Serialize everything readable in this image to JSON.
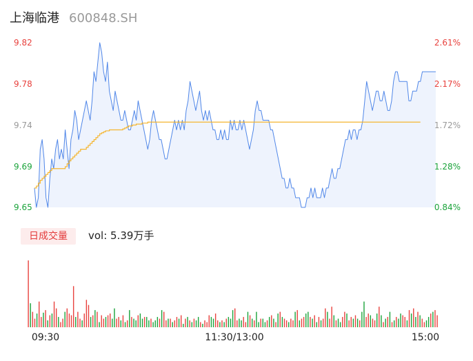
{
  "header": {
    "name": "上海临港",
    "code": "600848.SH"
  },
  "volume": {
    "badge": "日成交量",
    "label": "vol: 5.39万手"
  },
  "colors": {
    "up": "#e8413d",
    "down": "#1aa33a",
    "neutral": "#999999",
    "price_line": "#4f86e8",
    "avg_line": "#f5b52e"
  },
  "chart_data": [
    {
      "type": "line",
      "title": "",
      "price_ticks": [
        "9.82",
        "9.78",
        "9.74",
        "9.69",
        "9.65"
      ],
      "pct_ticks": [
        "2.61%",
        "2.17%",
        "1.72%",
        "1.28%",
        "0.84%"
      ],
      "y_range": [
        9.65,
        9.82
      ],
      "x_ticks": [
        "09:30",
        "11:30/13:00",
        "15:00"
      ],
      "series": [
        {
          "role": "price",
          "values": [
            9.67,
            9.65,
            9.66,
            9.71,
            9.72,
            9.7,
            9.66,
            9.65,
            9.68,
            9.7,
            9.69,
            9.71,
            9.72,
            9.7,
            9.71,
            9.7,
            9.73,
            9.71,
            9.69,
            9.72,
            9.73,
            9.75,
            9.74,
            9.72,
            9.73,
            9.74,
            9.75,
            9.76,
            9.75,
            9.74,
            9.76,
            9.79,
            9.78,
            9.8,
            9.82,
            9.81,
            9.79,
            9.78,
            9.8,
            9.77,
            9.76,
            9.75,
            9.77,
            9.76,
            9.75,
            9.74,
            9.74,
            9.75,
            9.74,
            9.73,
            9.73,
            9.74,
            9.75,
            9.74,
            9.76,
            9.75,
            9.74,
            9.73,
            9.72,
            9.71,
            9.72,
            9.74,
            9.75,
            9.74,
            9.73,
            9.72,
            9.72,
            9.71,
            9.7,
            9.7,
            9.71,
            9.72,
            9.73,
            9.74,
            9.73,
            9.74,
            9.73,
            9.74,
            9.73,
            9.75,
            9.76,
            9.78,
            9.77,
            9.76,
            9.75,
            9.76,
            9.77,
            9.75,
            9.74,
            9.75,
            9.74,
            9.75,
            9.74,
            9.73,
            9.73,
            9.72,
            9.72,
            9.73,
            9.72,
            9.73,
            9.72,
            9.72,
            9.74,
            9.73,
            9.74,
            9.73,
            9.73,
            9.74,
            9.73,
            9.74,
            9.73,
            9.72,
            9.71,
            9.72,
            9.73,
            9.75,
            9.76,
            9.75,
            9.75,
            9.74,
            9.74,
            9.74,
            9.74,
            9.73,
            9.73,
            9.72,
            9.71,
            9.7,
            9.69,
            9.68,
            9.68,
            9.67,
            9.67,
            9.68,
            9.67,
            9.67,
            9.66,
            9.66,
            9.66,
            9.65,
            9.65,
            9.65,
            9.66,
            9.66,
            9.67,
            9.66,
            9.67,
            9.66,
            9.66,
            9.66,
            9.67,
            9.66,
            9.67,
            9.67,
            9.68,
            9.69,
            9.68,
            9.68,
            9.69,
            9.69,
            9.7,
            9.71,
            9.72,
            9.72,
            9.73,
            9.72,
            9.73,
            9.73,
            9.72,
            9.73,
            9.73,
            9.74,
            9.76,
            9.78,
            9.77,
            9.76,
            9.75,
            9.76,
            9.77,
            9.77,
            9.76,
            9.76,
            9.77,
            9.76,
            9.75,
            9.75,
            9.76,
            9.78,
            9.79,
            9.79,
            9.78,
            9.78,
            9.78,
            9.78,
            9.78,
            9.76,
            9.76,
            9.77,
            9.77,
            9.77,
            9.78,
            9.78,
            9.79,
            9.79,
            9.79,
            9.79,
            9.79,
            9.79,
            9.79,
            9.79
          ]
        },
        {
          "role": "average",
          "values": [
            9.67,
            9.672,
            9.675,
            9.678,
            9.68,
            9.682,
            9.684,
            9.686,
            9.688,
            9.69,
            9.69,
            9.69,
            9.69,
            9.69,
            9.69,
            9.69,
            9.692,
            9.695,
            9.698,
            9.7,
            9.702,
            9.704,
            9.706,
            9.708,
            9.71,
            9.71,
            9.71,
            9.712,
            9.714,
            9.716,
            9.718,
            9.72,
            9.722,
            9.724,
            9.726,
            9.727,
            9.728,
            9.729,
            9.729,
            9.73,
            9.73,
            9.73,
            9.73,
            9.73,
            9.73,
            9.73,
            9.731,
            9.732,
            9.733,
            9.734,
            9.734,
            9.735,
            9.735,
            9.736,
            9.736,
            9.736,
            9.737,
            9.737,
            9.737,
            9.738,
            9.738,
            9.738,
            9.738,
            9.738,
            9.738,
            9.738,
            9.738,
            9.738,
            9.738,
            9.738,
            9.738,
            9.738,
            9.738,
            9.738,
            9.738,
            9.738,
            9.738,
            9.738,
            9.738,
            9.738,
            9.738,
            9.738,
            9.738,
            9.738,
            9.738,
            9.738,
            9.738,
            9.738,
            9.738,
            9.738,
            9.738,
            9.738,
            9.738,
            9.738,
            9.738,
            9.738,
            9.738,
            9.738,
            9.738,
            9.738,
            9.738,
            9.738,
            9.738,
            9.738,
            9.738,
            9.738,
            9.738,
            9.738,
            9.738,
            9.738,
            9.738,
            9.738,
            9.738,
            9.738,
            9.738,
            9.738,
            9.738,
            9.738,
            9.738,
            9.738,
            9.738,
            9.738,
            9.738,
            9.738,
            9.738,
            9.738,
            9.738,
            9.738,
            9.738,
            9.738,
            9.738,
            9.738,
            9.738,
            9.738,
            9.738,
            9.738,
            9.738,
            9.738,
            9.738,
            9.738,
            9.738,
            9.738,
            9.738,
            9.738,
            9.738,
            9.738,
            9.738,
            9.738,
            9.738,
            9.738,
            9.738,
            9.738,
            9.738,
            9.738,
            9.738,
            9.738,
            9.738,
            9.738,
            9.738,
            9.738,
            9.738,
            9.738,
            9.738,
            9.738,
            9.738,
            9.738,
            9.738,
            9.738,
            9.738,
            9.738,
            9.738,
            9.738,
            9.738,
            9.738,
            9.738,
            9.738,
            9.738,
            9.738,
            9.738,
            9.738,
            9.738,
            9.738,
            9.738,
            9.738,
            9.738,
            9.738,
            9.738,
            9.738,
            9.738,
            9.738,
            9.738,
            9.738,
            9.738,
            9.738,
            9.738,
            9.738,
            9.738,
            9.738,
            9.738,
            9.738,
            9.738,
            9.738
          ]
        }
      ]
    },
    {
      "type": "bar",
      "title": "",
      "values": [
        78,
        28,
        18,
        10,
        16,
        30,
        12,
        17,
        20,
        8,
        14,
        16,
        30,
        22,
        12,
        6,
        10,
        18,
        22,
        16,
        14,
        48,
        12,
        18,
        10,
        8,
        16,
        32,
        26,
        12,
        14,
        20,
        18,
        6,
        14,
        10,
        12,
        14,
        16,
        10,
        22,
        10,
        12,
        8,
        14,
        6,
        8,
        20,
        12,
        10,
        8,
        14,
        16,
        10,
        12,
        12,
        8,
        10,
        6,
        8,
        12,
        10,
        20,
        18,
        8,
        10,
        10,
        6,
        8,
        12,
        10,
        14,
        4,
        10,
        12,
        8,
        6,
        10,
        8,
        12,
        6,
        4,
        8,
        6,
        14,
        12,
        10,
        16,
        8,
        6,
        8,
        6,
        10,
        12,
        10,
        20,
        22,
        8,
        10,
        8,
        12,
        6,
        18,
        14,
        10,
        8,
        18,
        6,
        10,
        10,
        6,
        8,
        12,
        14,
        10,
        6,
        16,
        18,
        12,
        10,
        8,
        6,
        10,
        8,
        18,
        20,
        8,
        10,
        12,
        16,
        18,
        12,
        10,
        14,
        6,
        12,
        8,
        10,
        22,
        18,
        10,
        24,
        14,
        8,
        10,
        6,
        12,
        18,
        16,
        8,
        12,
        10,
        14,
        10,
        8,
        18,
        30,
        12,
        16,
        14,
        10,
        8,
        16,
        24,
        14,
        6,
        10,
        12,
        18,
        6,
        8,
        12,
        10,
        16,
        14,
        12,
        8,
        20,
        16,
        22,
        12,
        18,
        14,
        10,
        6,
        8,
        12,
        16,
        18,
        20,
        14
      ],
      "directions": [
        "u",
        "d",
        "u",
        "u",
        "d",
        "u",
        "u",
        "d",
        "u",
        "d",
        "u",
        "d",
        "u",
        "u",
        "d",
        "u",
        "u",
        "d",
        "u",
        "u",
        "u",
        "u",
        "d",
        "u",
        "u",
        "d",
        "u",
        "u",
        "u",
        "d",
        "u",
        "d",
        "u",
        "d",
        "u",
        "u",
        "d",
        "u",
        "u",
        "d",
        "d",
        "u",
        "u",
        "d",
        "u",
        "d",
        "u",
        "d",
        "u",
        "d",
        "d",
        "u",
        "d",
        "d",
        "u",
        "d",
        "d",
        "u",
        "d",
        "d",
        "d",
        "u",
        "d",
        "u",
        "u",
        "d",
        "u",
        "d",
        "u",
        "u",
        "d",
        "u",
        "d",
        "u",
        "d",
        "u",
        "d",
        "u",
        "d",
        "d",
        "u",
        "d",
        "u",
        "u",
        "u",
        "d",
        "d",
        "u",
        "u",
        "d",
        "u",
        "d",
        "u",
        "d",
        "d",
        "d",
        "u",
        "u",
        "d",
        "d",
        "u",
        "u",
        "d",
        "u",
        "d",
        "u",
        "d",
        "d",
        "u",
        "d",
        "d",
        "u",
        "d",
        "u",
        "d",
        "u",
        "d",
        "u",
        "d",
        "u",
        "u",
        "d",
        "u",
        "u",
        "d",
        "u",
        "d",
        "u",
        "u",
        "d",
        "d",
        "u",
        "d",
        "u",
        "d",
        "u",
        "d",
        "u",
        "u",
        "d",
        "u",
        "u",
        "d",
        "u",
        "d",
        "d",
        "u",
        "u",
        "d",
        "u",
        "u",
        "d",
        "u",
        "d",
        "u",
        "d",
        "d",
        "u",
        "u",
        "d",
        "u",
        "u",
        "d",
        "u",
        "d",
        "u",
        "d",
        "u",
        "d",
        "u",
        "d",
        "u",
        "d",
        "d",
        "u",
        "u",
        "d",
        "u",
        "d",
        "u",
        "d",
        "u",
        "d",
        "u",
        "u",
        "d",
        "d",
        "u",
        "d",
        "u",
        "u",
        "d",
        "u",
        "u",
        "d",
        "u",
        "d",
        "u",
        "d",
        "u",
        "u",
        "d",
        "u",
        "u",
        "u",
        "d",
        "u"
      ]
    }
  ]
}
